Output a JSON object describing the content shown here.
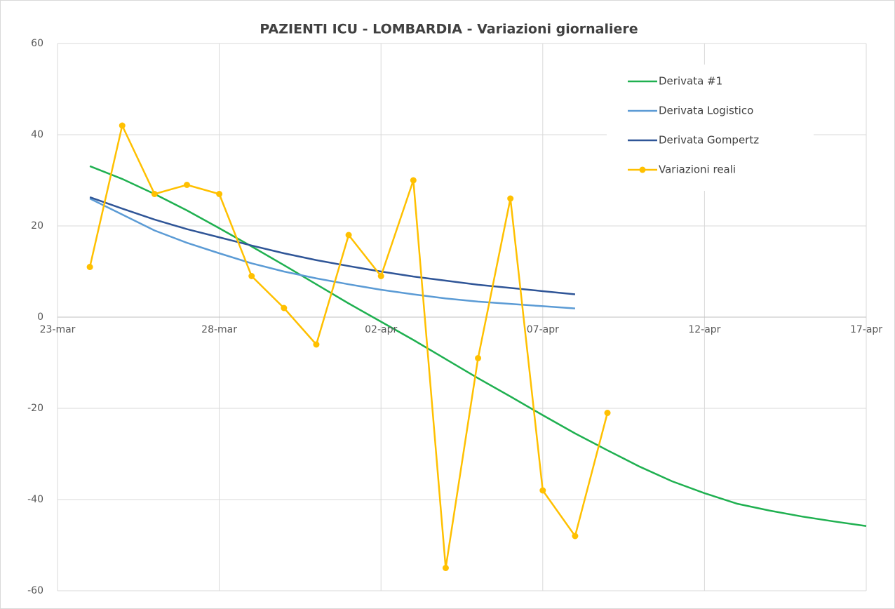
{
  "chart_data": {
    "type": "line",
    "title": "PAZIENTI ICU - LOMBARDIA - Variazioni giornaliere",
    "x": [
      "24-mar",
      "25-mar",
      "26-mar",
      "27-mar",
      "28-mar",
      "29-mar",
      "30-mar",
      "31-mar",
      "01-apr",
      "02-apr",
      "03-apr",
      "04-apr",
      "05-apr",
      "06-apr",
      "07-apr",
      "08-apr",
      "09-apr",
      "10-apr",
      "11-apr",
      "12-apr",
      "13-apr",
      "14-apr",
      "15-apr",
      "16-apr",
      "17-apr"
    ],
    "xlim": [
      "23-mar",
      "17-apr"
    ],
    "xticks": [
      "23-mar",
      "28-mar",
      "02-apr",
      "07-apr",
      "12-apr",
      "17-apr"
    ],
    "ylim": [
      -60,
      60
    ],
    "yticks": [
      -60,
      -40,
      -20,
      0,
      20,
      40,
      60
    ],
    "grid": true,
    "legend": "upper right",
    "series": [
      {
        "name": "Derivata #1",
        "color": "#1fb050",
        "marker": false,
        "values": [
          33.1,
          30.3,
          27,
          23.4,
          19.5,
          15.5,
          11.4,
          7.2,
          3,
          -1,
          -5,
          -9.2,
          -13.4,
          -17.4,
          -21.5,
          -25.5,
          -29.2,
          -32.8,
          -36,
          -38.6,
          -40.9,
          -42.4,
          -43.7,
          -44.8,
          -45.8
        ]
      },
      {
        "name": "Derivata Logistico",
        "color": "#5b9bd5",
        "marker": false,
        "values": [
          26,
          22.5,
          19,
          16.3,
          14,
          11.8,
          10,
          8.5,
          7.2,
          6,
          5,
          4.1,
          3.4,
          2.9,
          2.4,
          1.9,
          null,
          null,
          null,
          null,
          null,
          null,
          null,
          null,
          null
        ]
      },
      {
        "name": "Derivata Gompertz",
        "color": "#2f5597",
        "marker": false,
        "values": [
          26.3,
          23.8,
          21.4,
          19.3,
          17.5,
          15.7,
          14,
          12.5,
          11.2,
          10,
          8.9,
          8,
          7.1,
          6.4,
          5.7,
          5,
          null,
          null,
          null,
          null,
          null,
          null,
          null,
          null,
          null
        ]
      },
      {
        "name": "Variazioni reali",
        "color": "#ffc000",
        "marker": true,
        "values": [
          11,
          42,
          27,
          29,
          27,
          9,
          2,
          -6,
          18,
          9,
          30,
          -55,
          -9,
          26,
          -38,
          -48,
          -21,
          null,
          null,
          null,
          null,
          null,
          null,
          null,
          null
        ]
      }
    ]
  }
}
